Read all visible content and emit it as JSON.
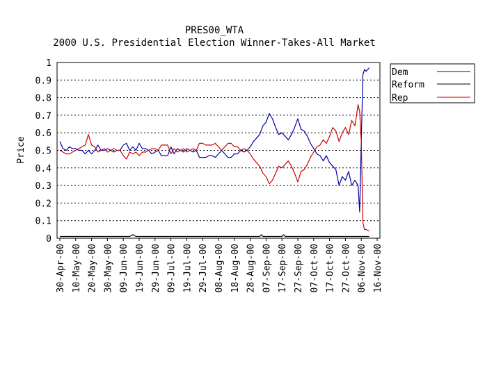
{
  "chart_data": {
    "type": "line",
    "title": "PRES00_WTA",
    "subtitle": "2000 U.S. Presidential Election Winner-Takes-All Market",
    "ylabel": "Price",
    "xlabel": "",
    "ylim": [
      0,
      1
    ],
    "grid": true,
    "legend_position": "top-right",
    "y_ticks": [
      "0",
      "0.1",
      "0.2",
      "0.3",
      "0.4",
      "0.5",
      "0.6",
      "0.7",
      "0.8",
      "0.9",
      "1"
    ],
    "x_ticks": [
      "30-Apr-00",
      "10-May-00",
      "20-May-00",
      "30-May-00",
      "09-Jun-00",
      "19-Jun-00",
      "29-Jun-00",
      "09-Jul-00",
      "19-Jul-00",
      "29-Jul-00",
      "08-Aug-00",
      "18-Aug-00",
      "28-Aug-00",
      "07-Sep-00",
      "17-Sep-00",
      "27-Sep-00",
      "07-Oct-00",
      "17-Oct-00",
      "27-Oct-00",
      "06-Nov-00",
      "16-Nov-00"
    ],
    "x_range_days": [
      0,
      200
    ],
    "series": [
      {
        "name": "Dem",
        "color": "#0000aa",
        "x": [
          0,
          2,
          4,
          6,
          8,
          10,
          12,
          14,
          16,
          18,
          20,
          22,
          24,
          26,
          28,
          30,
          32,
          34,
          36,
          38,
          40,
          42,
          44,
          46,
          48,
          50,
          52,
          54,
          56,
          58,
          60,
          62,
          64,
          66,
          68,
          70,
          72,
          74,
          76,
          78,
          80,
          82,
          84,
          86,
          88,
          90,
          92,
          94,
          96,
          98,
          100,
          102,
          104,
          106,
          108,
          110,
          112,
          114,
          116,
          118,
          120,
          122,
          124,
          126,
          128,
          130,
          132,
          134,
          136,
          138,
          140,
          142,
          144,
          146,
          148,
          150,
          152,
          154,
          156,
          158,
          160,
          162,
          164,
          166,
          168,
          170,
          172,
          174,
          176,
          178,
          180,
          182,
          184,
          186,
          188,
          189,
          190,
          191,
          192,
          193,
          195
        ],
        "values": [
          0.55,
          0.51,
          0.5,
          0.52,
          0.51,
          0.51,
          0.5,
          0.5,
          0.48,
          0.5,
          0.48,
          0.5,
          0.53,
          0.5,
          0.5,
          0.51,
          0.5,
          0.49,
          0.5,
          0.5,
          0.53,
          0.54,
          0.5,
          0.52,
          0.5,
          0.54,
          0.51,
          0.51,
          0.5,
          0.48,
          0.49,
          0.5,
          0.47,
          0.47,
          0.47,
          0.52,
          0.48,
          0.51,
          0.5,
          0.49,
          0.51,
          0.5,
          0.49,
          0.5,
          0.46,
          0.46,
          0.46,
          0.47,
          0.47,
          0.46,
          0.48,
          0.5,
          0.48,
          0.46,
          0.46,
          0.48,
          0.48,
          0.5,
          0.49,
          0.5,
          0.52,
          0.55,
          0.57,
          0.59,
          0.64,
          0.66,
          0.71,
          0.68,
          0.63,
          0.59,
          0.6,
          0.58,
          0.56,
          0.59,
          0.63,
          0.68,
          0.62,
          0.61,
          0.58,
          0.54,
          0.51,
          0.48,
          0.47,
          0.44,
          0.47,
          0.43,
          0.41,
          0.39,
          0.3,
          0.35,
          0.33,
          0.38,
          0.3,
          0.33,
          0.3,
          0.15,
          0.55,
          0.93,
          0.96,
          0.95,
          0.97
        ]
      },
      {
        "name": "Reform",
        "color": "#000000",
        "x": [
          0,
          20,
          40,
          44,
          46,
          48,
          60,
          80,
          100,
          120,
          126,
          127,
          128,
          140,
          141,
          142,
          160,
          180,
          195
        ],
        "values": [
          0.01,
          0.01,
          0.01,
          0.01,
          0.02,
          0.01,
          0.01,
          0.01,
          0.01,
          0.01,
          0.01,
          0.02,
          0.01,
          0.01,
          0.02,
          0.01,
          0.01,
          0.01,
          0.01
        ]
      },
      {
        "name": "Rep",
        "color": "#cc0000",
        "x": [
          0,
          2,
          4,
          6,
          8,
          10,
          12,
          14,
          16,
          18,
          20,
          22,
          24,
          26,
          28,
          30,
          32,
          34,
          36,
          38,
          40,
          42,
          44,
          46,
          48,
          50,
          52,
          54,
          56,
          58,
          60,
          62,
          64,
          66,
          68,
          70,
          72,
          74,
          76,
          78,
          80,
          82,
          84,
          86,
          88,
          90,
          92,
          94,
          96,
          98,
          100,
          102,
          104,
          106,
          108,
          110,
          112,
          114,
          116,
          118,
          120,
          122,
          124,
          126,
          128,
          130,
          132,
          134,
          136,
          138,
          140,
          142,
          144,
          146,
          148,
          150,
          152,
          154,
          156,
          158,
          160,
          162,
          164,
          166,
          168,
          170,
          172,
          174,
          176,
          178,
          180,
          182,
          184,
          186,
          188,
          189,
          190,
          191,
          192,
          193,
          195
        ],
        "values": [
          0.5,
          0.49,
          0.48,
          0.48,
          0.49,
          0.5,
          0.51,
          0.52,
          0.53,
          0.59,
          0.53,
          0.52,
          0.49,
          0.5,
          0.51,
          0.49,
          0.5,
          0.51,
          0.5,
          0.5,
          0.47,
          0.45,
          0.49,
          0.48,
          0.49,
          0.47,
          0.49,
          0.49,
          0.5,
          0.51,
          0.51,
          0.5,
          0.53,
          0.53,
          0.53,
          0.48,
          0.51,
          0.49,
          0.5,
          0.51,
          0.49,
          0.5,
          0.51,
          0.5,
          0.54,
          0.54,
          0.53,
          0.53,
          0.53,
          0.54,
          0.52,
          0.5,
          0.52,
          0.54,
          0.54,
          0.52,
          0.52,
          0.5,
          0.51,
          0.5,
          0.48,
          0.45,
          0.43,
          0.41,
          0.37,
          0.35,
          0.31,
          0.33,
          0.37,
          0.41,
          0.4,
          0.42,
          0.44,
          0.41,
          0.37,
          0.32,
          0.38,
          0.39,
          0.42,
          0.46,
          0.49,
          0.52,
          0.53,
          0.56,
          0.54,
          0.58,
          0.63,
          0.61,
          0.55,
          0.6,
          0.63,
          0.59,
          0.67,
          0.64,
          0.76,
          0.72,
          0.55,
          0.09,
          0.05,
          0.05,
          0.04
        ]
      }
    ]
  }
}
